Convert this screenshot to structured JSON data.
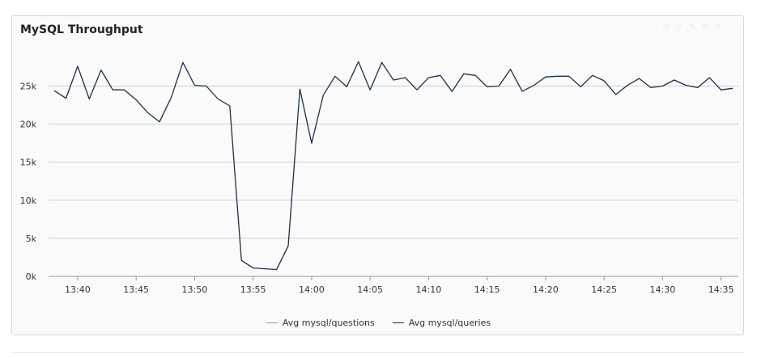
{
  "chart_data": {
    "type": "line",
    "title": "MySQL Throughput",
    "xlabel": "",
    "ylabel": "",
    "ylim": [
      0,
      30000
    ],
    "yticks": [
      "0k",
      "5k",
      "10k",
      "15k",
      "20k",
      "25k"
    ],
    "ytick_values": [
      0,
      5000,
      10000,
      15000,
      20000,
      25000
    ],
    "xticks": [
      "13:40",
      "13:45",
      "13:50",
      "13:55",
      "14:00",
      "14:05",
      "14:10",
      "14:15",
      "14:20",
      "14:25",
      "14:30",
      "14:35"
    ],
    "grid": true,
    "legend": "bottom",
    "series": [
      {
        "name": "Avg mysql/questions",
        "color": "#7aa6d8",
        "values": []
      },
      {
        "name": "Avg mysql/queries",
        "color": "#1b2f4a",
        "x": [
          "13:38",
          "13:39",
          "13:40",
          "13:41",
          "13:42",
          "13:43",
          "13:44",
          "13:45",
          "13:46",
          "13:47",
          "13:48",
          "13:49",
          "13:50",
          "13:51",
          "13:52",
          "13:53",
          "13:54",
          "13:55",
          "13:56",
          "13:57",
          "13:58",
          "13:59",
          "14:00",
          "14:01",
          "14:02",
          "14:03",
          "14:04",
          "14:05",
          "14:06",
          "14:07",
          "14:08",
          "14:09",
          "14:10",
          "14:11",
          "14:12",
          "14:13",
          "14:14",
          "14:15",
          "14:16",
          "14:17",
          "14:18",
          "14:19",
          "14:20",
          "14:21",
          "14:22",
          "14:23",
          "14:24",
          "14:25",
          "14:26",
          "14:27",
          "14:28",
          "14:29",
          "14:30",
          "14:31",
          "14:32",
          "14:33",
          "14:34",
          "14:35",
          "14:36"
        ],
        "values": [
          24400,
          23400,
          27600,
          23300,
          27100,
          24500,
          24500,
          23200,
          21500,
          20300,
          23500,
          28100,
          25100,
          25000,
          23300,
          22400,
          2100,
          1100,
          1000,
          900,
          4000,
          24600,
          17500,
          23800,
          26300,
          24900,
          28200,
          24500,
          28100,
          25800,
          26100,
          24500,
          26100,
          26400,
          24300,
          26600,
          26400,
          24900,
          25000,
          27200,
          24300,
          25100,
          26200,
          26300,
          26300,
          24900,
          26400,
          25700,
          23900,
          25100,
          26000,
          24800,
          25000,
          25800,
          25100,
          24800,
          26100,
          24500,
          24700
        ]
      }
    ]
  },
  "toolbar": {
    "icons": [
      "clock-icon",
      "zoom-icon",
      "pencil-icon",
      "gear-icon",
      "edit-icon",
      "menu-icon"
    ]
  }
}
